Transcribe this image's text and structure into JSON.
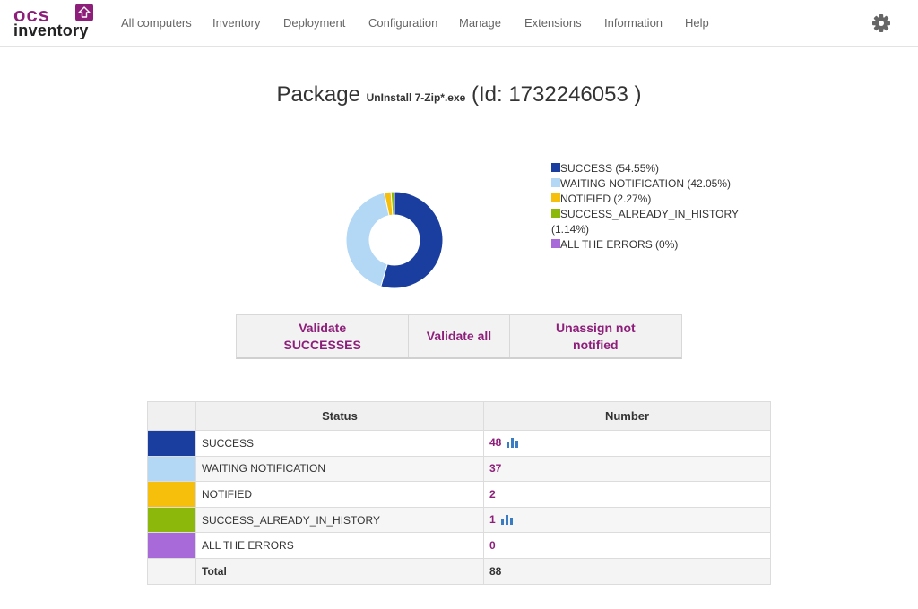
{
  "app": {
    "logo_top": "ocs",
    "logo_bottom": "inventory"
  },
  "nav": {
    "items": [
      {
        "label": "All computers"
      },
      {
        "label": "Inventory"
      },
      {
        "label": "Deployment"
      },
      {
        "label": "Configuration"
      },
      {
        "label": "Manage"
      },
      {
        "label": "Extensions"
      },
      {
        "label": "Information"
      },
      {
        "label": "Help"
      }
    ],
    "settings_icon": "gear-icon"
  },
  "title": {
    "prefix": "Package",
    "package_name": "UnInstall 7-Zip*.exe",
    "id_text": "(Id: 1732246053 )"
  },
  "chart_data": {
    "type": "pie",
    "style": "donut",
    "categories": [
      "SUCCESS",
      "WAITING NOTIFICATION",
      "NOTIFIED",
      "SUCCESS_ALREADY_IN_HISTORY",
      "ALL THE ERRORS"
    ],
    "values": [
      54.55,
      42.05,
      2.27,
      1.14,
      0
    ],
    "colors": [
      "#1a3ea0",
      "#b2d8f6",
      "#f5bf0c",
      "#8cb80c",
      "#a86ad9"
    ],
    "legend_position": "right",
    "legend": [
      {
        "label": "SUCCESS (54.55%)"
      },
      {
        "label": "WAITING NOTIFICATION (42.05%)"
      },
      {
        "label": "NOTIFIED (2.27%)"
      },
      {
        "label": "SUCCESS_ALREADY_IN_HISTORY (1.14%)"
      },
      {
        "label": "ALL THE ERRORS (0%)"
      }
    ]
  },
  "actions": {
    "validate_successes": "Validate SUCCESSES",
    "validate_all": "Validate all",
    "unassign": "Unassign not notified"
  },
  "table": {
    "headers": {
      "color": "",
      "status": "Status",
      "number": "Number"
    },
    "rows": [
      {
        "color": "#1a3ea0",
        "status": "SUCCESS",
        "number": "48",
        "stats_icon": "bar-chart-icon"
      },
      {
        "color": "#b2d8f6",
        "status": "WAITING NOTIFICATION",
        "number": "37"
      },
      {
        "color": "#f5bf0c",
        "status": "NOTIFIED",
        "number": "2"
      },
      {
        "color": "#8cb80c",
        "status": "SUCCESS_ALREADY_IN_HISTORY",
        "number": "1",
        "stats_icon": "bar-chart-icon"
      },
      {
        "color": "#a86ad9",
        "status": "ALL THE ERRORS",
        "number": "0"
      }
    ],
    "total": {
      "label": "Total",
      "value": "88"
    }
  },
  "colors": {
    "accent": "#8d1f7a",
    "icon_blue": "#3a7cc3"
  }
}
